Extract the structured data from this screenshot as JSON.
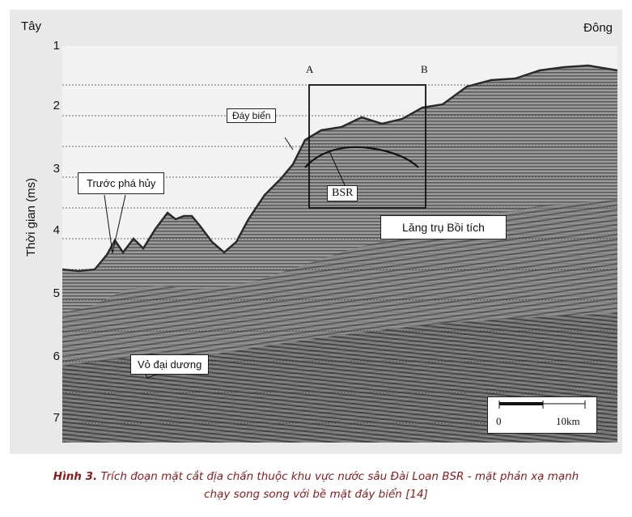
{
  "figure": {
    "direction_west": "Tây",
    "direction_east": "Đông",
    "axis_label": "Thời gian (ms)",
    "ticks": [
      "1",
      "2",
      "3",
      "4",
      "5",
      "6",
      "7"
    ],
    "labels": {
      "seafloor": "Đáy biển",
      "before_failure": "Trước phá hủy",
      "bsr": "BSR",
      "accretionary_prism": "Lăng trụ Bồi tích",
      "oceanic_crust": "Vỏ đại dương"
    },
    "corners": {
      "a": "A",
      "b": "B"
    },
    "scale": {
      "start": "0",
      "end": "10km"
    },
    "colors": {
      "background": "#e9e9e9",
      "seismic_dark": "#3a3a3a",
      "seismic_light": "#9a9a9a"
    }
  },
  "caption": {
    "number": "Hình 3.",
    "text_line1": "Trích đoạn mặt cắt địa chấn thuộc khu vực nước sâu Đài Loan BSR - mặt phản xạ mạnh",
    "text_line2": "chạy song song với bề mặt đáy biển [14]"
  }
}
